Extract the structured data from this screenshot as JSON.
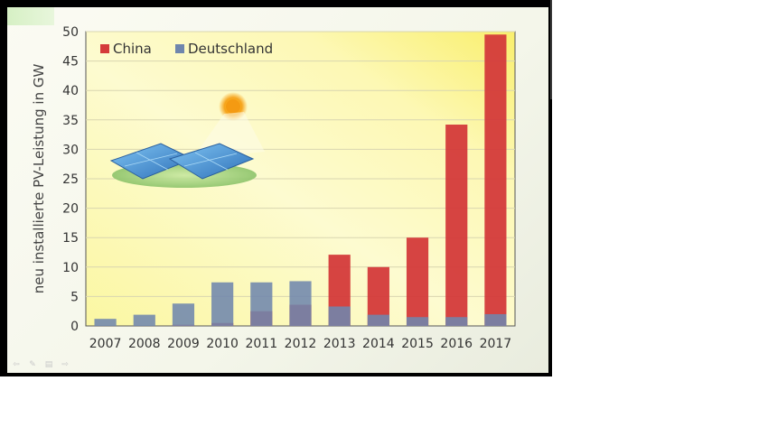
{
  "chart_data": {
    "type": "bar",
    "title": "",
    "xlabel": "",
    "ylabel": "neu installierte PV-Leistung in GW",
    "ylim": [
      0,
      50
    ],
    "yticks": [
      0,
      5,
      10,
      15,
      20,
      25,
      30,
      35,
      40,
      45,
      50
    ],
    "grid": true,
    "legend_position": "top-left",
    "categories": [
      "2007",
      "2008",
      "2009",
      "2010",
      "2011",
      "2012",
      "2013",
      "2014",
      "2015",
      "2016",
      "2017"
    ],
    "series": [
      {
        "name": "Deutschland",
        "color": "#6f86ad",
        "values": [
          1.2,
          1.9,
          3.8,
          7.4,
          7.4,
          7.6,
          3.3,
          1.9,
          1.5,
          1.5,
          2.0
        ]
      },
      {
        "name": "China",
        "color": "#d43a3a",
        "values": [
          0.0,
          0.0,
          0.2,
          0.5,
          2.5,
          3.6,
          12.1,
          10.0,
          15.0,
          34.2,
          49.5
        ]
      }
    ]
  },
  "decoration": {
    "illustration": "solar-panels-with-sun",
    "sun_color": "#f6a31b",
    "panel_color": "#3f8ccf"
  },
  "controls": [
    {
      "icon": "back-arrow-icon",
      "glyph": "⇦"
    },
    {
      "icon": "pen-icon",
      "glyph": "✎"
    },
    {
      "icon": "menu-icon",
      "glyph": "▤"
    },
    {
      "icon": "forward-arrow-icon",
      "glyph": "⇨"
    }
  ]
}
